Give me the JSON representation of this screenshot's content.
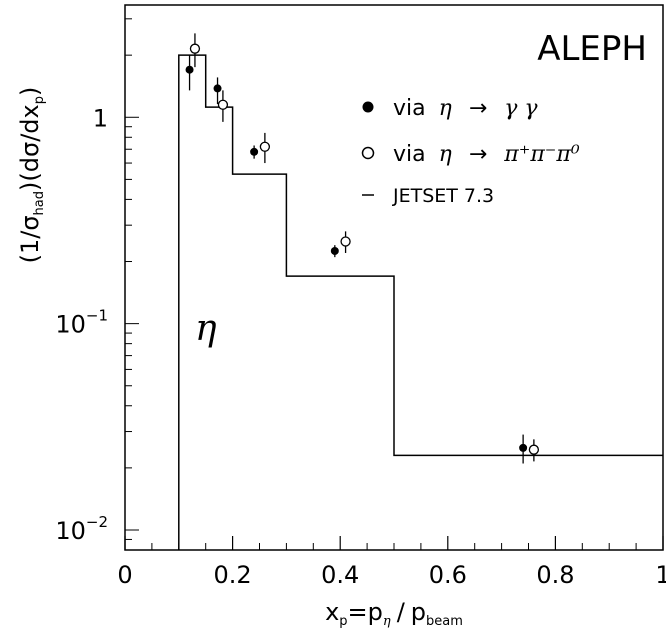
{
  "chart_data": {
    "type": "scatter",
    "title": "ALEPH",
    "annotation": "η",
    "xlabel": {
      "base": "x",
      "sub1": "p",
      "eq": "=",
      "p1": "p",
      "sub2": "η",
      "slash": "/",
      "p2": "p",
      "sub3": "beam"
    },
    "ylabel": {
      "open": "(1/σ",
      "sub1": "had",
      "mid": ")(dσ/dx",
      "sub2": "p",
      "close": ")"
    },
    "xlim": [
      0,
      1
    ],
    "ylim": [
      0.008,
      3.5
    ],
    "yscale": "log",
    "grid": false,
    "legend_position": "top-right",
    "xticks": [
      {
        "value": 0,
        "label": "0"
      },
      {
        "value": 0.2,
        "label": "0.2"
      },
      {
        "value": 0.4,
        "label": "0.4"
      },
      {
        "value": 0.6,
        "label": "0.6"
      },
      {
        "value": 0.8,
        "label": "0.8"
      },
      {
        "value": 1,
        "label": "1"
      }
    ],
    "yticks": [
      {
        "value": 0.01,
        "base": "10",
        "exp": "−2"
      },
      {
        "value": 0.1,
        "base": "10",
        "exp": "−1"
      },
      {
        "value": 1,
        "base": "1",
        "exp": ""
      }
    ],
    "series": [
      {
        "name": "via η → γ γ",
        "marker": "filled-circle",
        "points": [
          {
            "x": 0.12,
            "y": 1.7,
            "err_low": 0.35,
            "err_high": 0.3
          },
          {
            "x": 0.172,
            "y": 1.38,
            "err_low": 0.22,
            "err_high": 0.18
          },
          {
            "x": 0.24,
            "y": 0.68,
            "err_low": 0.05,
            "err_high": 0.05
          },
          {
            "x": 0.39,
            "y": 0.225,
            "err_low": 0.015,
            "err_high": 0.015
          },
          {
            "x": 0.74,
            "y": 0.025,
            "err_low": 0.004,
            "err_high": 0.004
          }
        ]
      },
      {
        "name": "via η → π⁺π⁻π⁰",
        "marker": "open-circle",
        "points": [
          {
            "x": 0.13,
            "y": 2.15,
            "err_low": 0.4,
            "err_high": 0.4
          },
          {
            "x": 0.182,
            "y": 1.15,
            "err_low": 0.2,
            "err_high": 0.2
          },
          {
            "x": 0.26,
            "y": 0.72,
            "err_low": 0.12,
            "err_high": 0.12
          },
          {
            "x": 0.41,
            "y": 0.25,
            "err_low": 0.03,
            "err_high": 0.03
          },
          {
            "x": 0.76,
            "y": 0.0245,
            "err_low": 0.003,
            "err_high": 0.003
          }
        ]
      }
    ],
    "histogram": {
      "name": "JETSET 7.3",
      "bins": [
        {
          "x0": 0.1,
          "x1": 0.15,
          "y": 2.0
        },
        {
          "x0": 0.15,
          "x1": 0.2,
          "y": 1.12
        },
        {
          "x0": 0.2,
          "x1": 0.3,
          "y": 0.53
        },
        {
          "x0": 0.3,
          "x1": 0.5,
          "y": 0.17
        },
        {
          "x0": 0.5,
          "x1": 1.0,
          "y": 0.023
        }
      ]
    },
    "legend": [
      {
        "marker": "filled-circle",
        "prefix": "via",
        "eta": "η",
        "arrow": "→",
        "rest": "γ γ"
      },
      {
        "marker": "open-circle",
        "prefix": "via",
        "eta": "η",
        "arrow": "→",
        "rest": "π⁺π⁻π⁰"
      },
      {
        "marker": "line",
        "label": "JETSET 7.3"
      }
    ]
  }
}
